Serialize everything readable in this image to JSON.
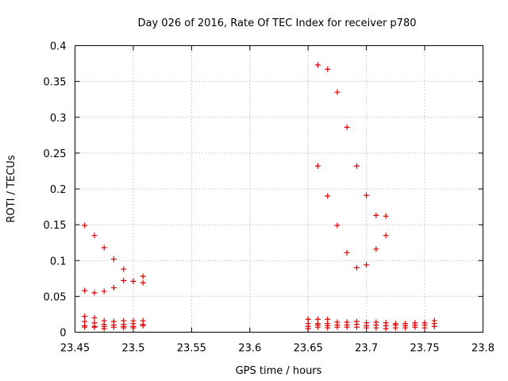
{
  "chart_data": {
    "type": "scatter",
    "title": "Day 026 of 2016, Rate Of TEC Index for receiver p780",
    "xlabel": "GPS time / hours",
    "ylabel": "ROTI / TECUs",
    "xlim": [
      23.45,
      23.8
    ],
    "ylim": [
      0,
      0.4
    ],
    "grid": true,
    "marker": "+",
    "color": "#dd0000",
    "x_ticks": [
      {
        "v": 23.45,
        "label": "23.45"
      },
      {
        "v": 23.5,
        "label": "23.5"
      },
      {
        "v": 23.55,
        "label": "23.55"
      },
      {
        "v": 23.6,
        "label": "23.6"
      },
      {
        "v": 23.65,
        "label": "23.65"
      },
      {
        "v": 23.7,
        "label": "23.7"
      },
      {
        "v": 23.75,
        "label": "23.75"
      },
      {
        "v": 23.8,
        "label": "23.8"
      }
    ],
    "y_ticks": [
      {
        "v": 0,
        "label": "0"
      },
      {
        "v": 0.05,
        "label": "0.05"
      },
      {
        "v": 0.1,
        "label": "0.1"
      },
      {
        "v": 0.15,
        "label": "0.15"
      },
      {
        "v": 0.2,
        "label": "0.2"
      },
      {
        "v": 0.25,
        "label": "0.25"
      },
      {
        "v": 0.3,
        "label": "0.3"
      },
      {
        "v": 0.35,
        "label": "0.35"
      },
      {
        "v": 0.4,
        "label": "0.4"
      }
    ],
    "points": [
      [
        23.4583,
        0.149
      ],
      [
        23.4583,
        0.058
      ],
      [
        23.4583,
        0.022
      ],
      [
        23.4583,
        0.015
      ],
      [
        23.4583,
        0.009
      ],
      [
        23.4583,
        0.007
      ],
      [
        23.4667,
        0.135
      ],
      [
        23.4667,
        0.055
      ],
      [
        23.4667,
        0.02
      ],
      [
        23.4667,
        0.013
      ],
      [
        23.4667,
        0.008
      ],
      [
        23.4667,
        0.007
      ],
      [
        23.475,
        0.118
      ],
      [
        23.475,
        0.057
      ],
      [
        23.475,
        0.016
      ],
      [
        23.475,
        0.011
      ],
      [
        23.475,
        0.008
      ],
      [
        23.475,
        0.005
      ],
      [
        23.4833,
        0.102
      ],
      [
        23.4833,
        0.062
      ],
      [
        23.4833,
        0.015
      ],
      [
        23.4833,
        0.01
      ],
      [
        23.4833,
        0.007
      ],
      [
        23.4917,
        0.088
      ],
      [
        23.4917,
        0.072
      ],
      [
        23.4917,
        0.016
      ],
      [
        23.4917,
        0.011
      ],
      [
        23.4917,
        0.008
      ],
      [
        23.4917,
        0.006
      ],
      [
        23.5,
        0.071
      ],
      [
        23.5,
        0.071
      ],
      [
        23.5,
        0.016
      ],
      [
        23.5,
        0.012
      ],
      [
        23.5,
        0.008
      ],
      [
        23.5,
        0.006
      ],
      [
        23.5083,
        0.078
      ],
      [
        23.5083,
        0.069
      ],
      [
        23.5083,
        0.016
      ],
      [
        23.5083,
        0.011
      ],
      [
        23.5083,
        0.009
      ],
      [
        23.65,
        0.018
      ],
      [
        23.65,
        0.012
      ],
      [
        23.65,
        0.008
      ],
      [
        23.65,
        0.005
      ],
      [
        23.6583,
        0.373
      ],
      [
        23.6583,
        0.232
      ],
      [
        23.6583,
        0.018
      ],
      [
        23.6583,
        0.012
      ],
      [
        23.6583,
        0.01
      ],
      [
        23.6583,
        0.007
      ],
      [
        23.6667,
        0.367
      ],
      [
        23.6667,
        0.19
      ],
      [
        23.6667,
        0.018
      ],
      [
        23.6667,
        0.012
      ],
      [
        23.6667,
        0.009
      ],
      [
        23.6667,
        0.006
      ],
      [
        23.675,
        0.335
      ],
      [
        23.675,
        0.149
      ],
      [
        23.675,
        0.014
      ],
      [
        23.675,
        0.01
      ],
      [
        23.675,
        0.007
      ],
      [
        23.6833,
        0.286
      ],
      [
        23.6833,
        0.111
      ],
      [
        23.6833,
        0.014
      ],
      [
        23.6833,
        0.01
      ],
      [
        23.6833,
        0.007
      ],
      [
        23.6917,
        0.232
      ],
      [
        23.6917,
        0.09
      ],
      [
        23.6917,
        0.015
      ],
      [
        23.6917,
        0.011
      ],
      [
        23.6917,
        0.007
      ],
      [
        23.7,
        0.191
      ],
      [
        23.7,
        0.094
      ],
      [
        23.7,
        0.013
      ],
      [
        23.7,
        0.009
      ],
      [
        23.7,
        0.006
      ],
      [
        23.7083,
        0.163
      ],
      [
        23.7083,
        0.116
      ],
      [
        23.7083,
        0.014
      ],
      [
        23.7083,
        0.01
      ],
      [
        23.7083,
        0.006
      ],
      [
        23.7167,
        0.162
      ],
      [
        23.7167,
        0.135
      ],
      [
        23.7167,
        0.013
      ],
      [
        23.7167,
        0.009
      ],
      [
        23.7167,
        0.005
      ],
      [
        23.725,
        0.012
      ],
      [
        23.725,
        0.01
      ],
      [
        23.725,
        0.006
      ],
      [
        23.7333,
        0.012
      ],
      [
        23.7333,
        0.009
      ],
      [
        23.7333,
        0.006
      ],
      [
        23.7417,
        0.013
      ],
      [
        23.7417,
        0.01
      ],
      [
        23.7417,
        0.007
      ],
      [
        23.75,
        0.013
      ],
      [
        23.75,
        0.01
      ],
      [
        23.75,
        0.006
      ],
      [
        23.7583,
        0.016
      ],
      [
        23.7583,
        0.012
      ],
      [
        23.7583,
        0.008
      ]
    ]
  }
}
